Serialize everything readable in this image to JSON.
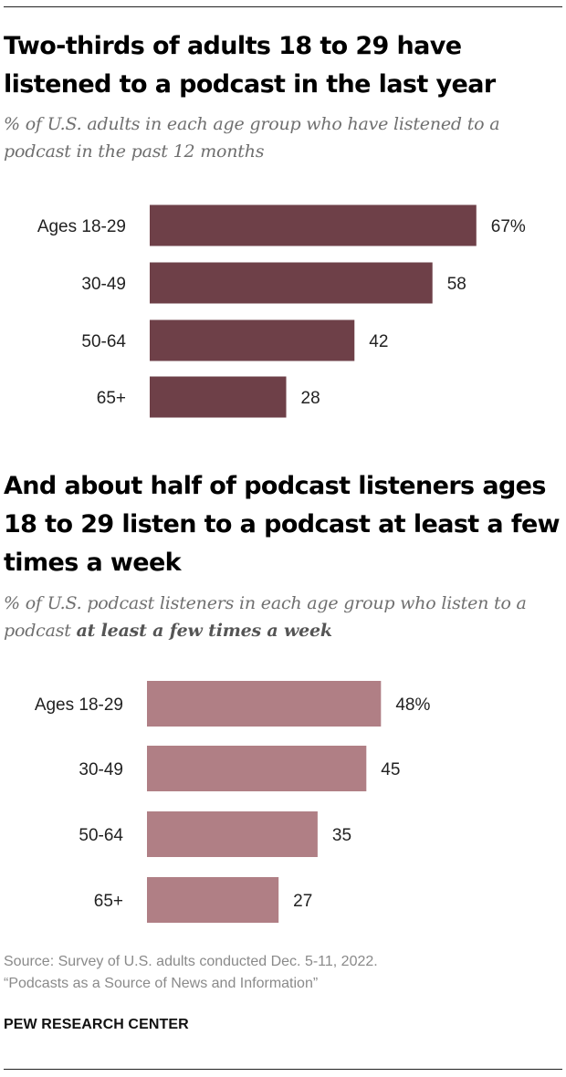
{
  "chart_data": [
    {
      "type": "bar",
      "orientation": "horizontal",
      "title": "Two-thirds of adults 18 to 29 have listened to a podcast in the last year",
      "subtitle": "% of U.S. adults in each age group who have listened to a podcast in the past 12 months",
      "categories": [
        "Ages 18-29",
        "30-49",
        "50-64",
        "65+"
      ],
      "values": [
        67,
        58,
        42,
        28
      ],
      "value_labels": [
        "67%",
        "58",
        "42",
        "28"
      ],
      "color": "#6e4048",
      "xlim": [
        0,
        100
      ]
    },
    {
      "type": "bar",
      "orientation": "horizontal",
      "title": "And about half of podcast listeners ages 18 to 29 listen to a podcast at least a few times a week",
      "subtitle_plain": "% of U.S. podcast listeners in each age group who listen to a podcast ",
      "subtitle_bold": "at least a few times a week",
      "categories": [
        "Ages 18-29",
        "30-49",
        "50-64",
        "65+"
      ],
      "values": [
        48,
        45,
        35,
        27
      ],
      "value_labels": [
        "48%",
        "45",
        "35",
        "27"
      ],
      "color": "#b07f85",
      "xlim": [
        0,
        100
      ]
    }
  ],
  "source_line1": "Source: Survey of U.S. adults conducted Dec. 5-11, 2022.",
  "source_line2": "“Podcasts as a Source of News and Information”",
  "organization": "PEW RESEARCH CENTER"
}
